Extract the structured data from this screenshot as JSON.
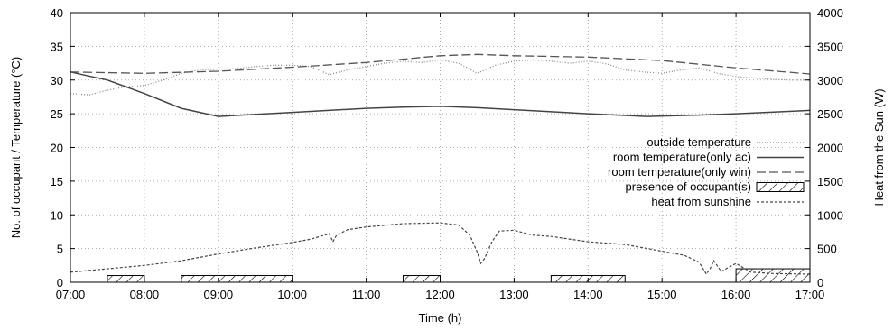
{
  "chart_data": {
    "type": "line",
    "xlabel": "Time (h)",
    "ylabel_left": "No. of occupant / Temperature (°C)",
    "ylabel_right": "Heat from the Sun (W)",
    "x_ticks": [
      "07:00",
      "08:00",
      "09:00",
      "10:00",
      "11:00",
      "12:00",
      "13:00",
      "14:00",
      "15:00",
      "16:00",
      "17:00"
    ],
    "xlim": [
      7,
      17
    ],
    "ylim_left": [
      0,
      40
    ],
    "ylim_right": [
      0,
      4000
    ],
    "y_ticks_left": [
      0,
      5,
      10,
      15,
      20,
      25,
      30,
      35,
      40
    ],
    "y_ticks_right": [
      0,
      500,
      1000,
      1500,
      2000,
      2500,
      3000,
      3500,
      4000
    ],
    "grid": true,
    "legend_position": "center-right",
    "legend": [
      "outside temperature",
      "room temperature(only ac)",
      "room temperature(only win)",
      "presence of occupant(s)",
      "heat from sunshine"
    ],
    "series": [
      {
        "name": "outside temperature",
        "axis": "left",
        "style": "dotted",
        "x": [
          7.0,
          7.25,
          7.5,
          7.75,
          8.0,
          8.25,
          8.5,
          8.75,
          9.0,
          9.25,
          9.5,
          9.75,
          10.0,
          10.25,
          10.5,
          10.75,
          11.0,
          11.25,
          11.5,
          11.75,
          12.0,
          12.25,
          12.5,
          12.75,
          13.0,
          13.25,
          13.5,
          13.75,
          14.0,
          14.25,
          14.5,
          14.75,
          15.0,
          15.25,
          15.5,
          15.75,
          16.0,
          16.25,
          16.5,
          16.75,
          17.0
        ],
        "y": [
          28.0,
          27.8,
          28.5,
          29.0,
          29.2,
          30.0,
          31.0,
          31.5,
          31.6,
          31.7,
          32.0,
          32.2,
          32.2,
          32.0,
          30.8,
          31.5,
          32.0,
          32.5,
          32.8,
          32.6,
          33.0,
          32.5,
          31.0,
          32.2,
          32.8,
          33.0,
          32.8,
          32.5,
          32.8,
          32.4,
          31.5,
          31.2,
          31.0,
          31.5,
          31.8,
          31.0,
          30.5,
          30.3,
          30.1,
          30.0,
          30.0
        ]
      },
      {
        "name": "room temperature(only ac)",
        "axis": "left",
        "style": "solid",
        "x": [
          7.0,
          7.5,
          8.0,
          8.5,
          9.0,
          10.0,
          11.0,
          11.5,
          12.0,
          12.5,
          13.0,
          14.0,
          14.8,
          15.5,
          16.0,
          17.0
        ],
        "y": [
          31.2,
          30.0,
          28.0,
          25.8,
          24.6,
          25.2,
          25.8,
          26.0,
          26.1,
          25.9,
          25.6,
          25.0,
          24.6,
          24.8,
          25.0,
          25.5
        ]
      },
      {
        "name": "room temperature(only win)",
        "axis": "left",
        "style": "dashed",
        "x": [
          7.0,
          8.0,
          9.0,
          10.0,
          11.0,
          12.0,
          12.5,
          13.0,
          14.0,
          15.0,
          16.0,
          17.0
        ],
        "y": [
          31.2,
          31.0,
          31.3,
          31.9,
          32.6,
          33.6,
          33.8,
          33.6,
          33.4,
          32.9,
          31.8,
          30.9
        ]
      },
      {
        "name": "heat from sunshine",
        "axis": "right",
        "style": "short-dashed",
        "x": [
          7.0,
          7.5,
          8.0,
          8.5,
          9.0,
          9.5,
          10.0,
          10.25,
          10.5,
          10.55,
          10.6,
          10.75,
          11.0,
          11.5,
          12.0,
          12.25,
          12.4,
          12.5,
          12.55,
          12.6,
          12.7,
          12.8,
          13.0,
          13.25,
          13.5,
          14.0,
          14.5,
          15.0,
          15.3,
          15.5,
          15.6,
          15.65,
          15.7,
          15.8,
          16.0,
          16.2,
          16.5,
          17.0
        ],
        "y": [
          150,
          200,
          250,
          320,
          420,
          510,
          590,
          640,
          720,
          600,
          700,
          780,
          820,
          870,
          880,
          850,
          700,
          450,
          280,
          350,
          600,
          760,
          770,
          700,
          680,
          600,
          560,
          460,
          400,
          300,
          120,
          200,
          320,
          160,
          280,
          150,
          130,
          120
        ]
      }
    ],
    "occupancy": {
      "name": "presence of occupant(s)",
      "axis": "left",
      "intervals": [
        {
          "start": 7.5,
          "end": 8.0,
          "value": 1
        },
        {
          "start": 8.5,
          "end": 10.0,
          "value": 1
        },
        {
          "start": 11.5,
          "end": 12.0,
          "value": 1
        },
        {
          "start": 13.5,
          "end": 14.5,
          "value": 1
        },
        {
          "start": 16.0,
          "end": 17.0,
          "value": 2
        }
      ]
    }
  }
}
